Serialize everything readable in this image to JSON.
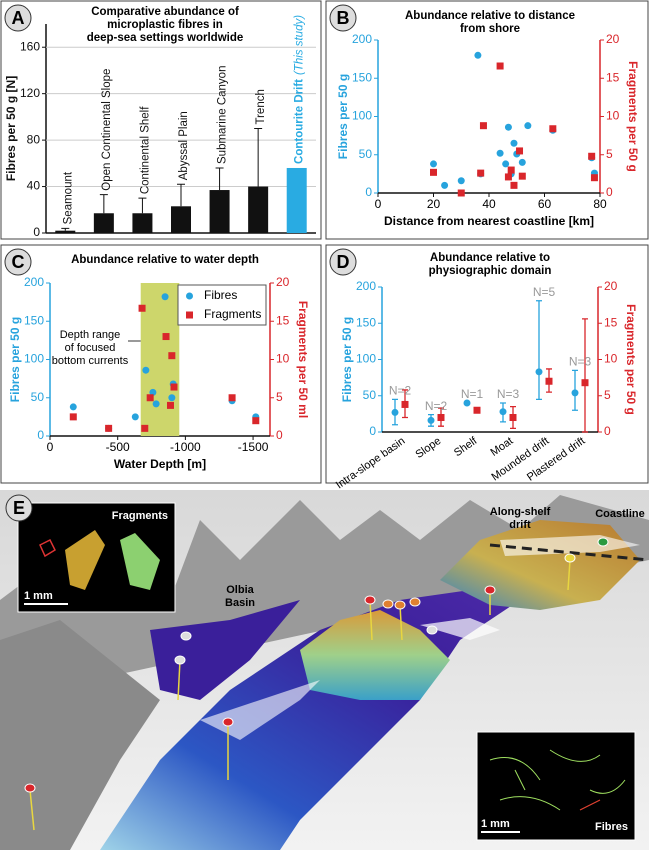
{
  "chart_data": [
    {
      "label": "A",
      "type": "bar",
      "title": [
        "Comparative abundance of",
        "microplastic fibres in",
        "deep-sea settings worldwide"
      ],
      "ylabel": "Fibres per 50 g [N]",
      "categories": [
        "Seamount",
        "Open Continental Slope",
        "Continental Shelf",
        "Abyssal Plain",
        "Submarine Canyon",
        "Trench",
        "Contourite Drift"
      ],
      "notes": [
        null,
        null,
        null,
        null,
        null,
        null,
        "(This study)"
      ],
      "values": [
        2,
        17,
        17,
        23,
        37,
        40,
        56
      ],
      "errors": [
        2,
        16,
        13,
        19,
        19,
        50,
        null
      ],
      "colors": [
        "#111111",
        "#111111",
        "#111111",
        "#111111",
        "#111111",
        "#111111",
        "#29abe2"
      ],
      "ylim": [
        0,
        180
      ],
      "yticks": [
        0,
        40,
        80,
        120,
        160
      ],
      "grid": true
    },
    {
      "label": "B",
      "type": "scatter",
      "title": [
        "Abundance relative to distance",
        "from shore"
      ],
      "xlabel": "Distance from nearest coastline [km]",
      "ylabel": "Fibres per 50 g",
      "y2label": "Fragments per 50 g",
      "ycolor": "#27a3dd",
      "y2color": "#d9262b",
      "xlim": [
        0,
        80
      ],
      "xticks": [
        0,
        20,
        40,
        60,
        80
      ],
      "ylim": [
        0,
        200
      ],
      "yticks": [
        0,
        50,
        100,
        150,
        200
      ],
      "y2lim": [
        0,
        20
      ],
      "y2ticks": [
        0,
        5,
        10,
        15,
        20
      ],
      "series": [
        {
          "color": "#27a3dd",
          "marker": "circle",
          "x": [
            20,
            24,
            30,
            36,
            37,
            44,
            46,
            47,
            48,
            49,
            50,
            52,
            54,
            63,
            77,
            78
          ],
          "values": [
            38,
            10,
            16,
            180,
            25,
            52,
            38,
            86,
            25,
            65,
            51,
            40,
            88,
            82,
            46,
            26
          ]
        },
        {
          "color": "#d9262b",
          "marker": "square",
          "axis": "y2",
          "x": [
            20,
            30,
            38,
            37,
            44,
            47,
            48,
            49,
            51,
            52,
            63,
            77,
            78
          ],
          "values": [
            2.7,
            0,
            8.8,
            2.6,
            16.6,
            2.1,
            3,
            1,
            5.5,
            2.2,
            8.4,
            4.8,
            2
          ]
        }
      ]
    },
    {
      "label": "C",
      "type": "scatter",
      "title": [
        "Abundance relative to water depth"
      ],
      "xlabel": "Water Depth [m]",
      "ylabel": "Fibres per 50 g",
      "y2label": "Fragments per 50 ml",
      "ycolor": "#27a3dd",
      "y2color": "#d9262b",
      "xlim": [
        0,
        -1625
      ],
      "xticks": [
        0,
        -500,
        -1000,
        -1500
      ],
      "ylim": [
        0,
        200
      ],
      "yticks": [
        0,
        50,
        100,
        150,
        200
      ],
      "y2lim": [
        0,
        20
      ],
      "y2ticks": [
        0,
        5,
        10,
        15,
        20
      ],
      "band": [
        -670,
        -955
      ],
      "band_color": "#cdd66b",
      "annotation": [
        "Depth range",
        "of focused",
        "bottom currents"
      ],
      "legend": "upper right",
      "series": [
        {
          "name": "Fibres",
          "color": "#27a3dd",
          "marker": "circle",
          "x": [
            -172,
            -433,
            -630,
            -708,
            -760,
            -784,
            -850,
            -910,
            -900,
            -1345,
            -1520
          ],
          "values": [
            38,
            10,
            25,
            86,
            57,
            42,
            182,
            68,
            50,
            46,
            25
          ]
        },
        {
          "name": "Fragments",
          "color": "#d9262b",
          "marker": "square",
          "axis": "y2",
          "x": [
            -172,
            -433,
            -680,
            -700,
            -740,
            -857,
            -916,
            -890,
            -900,
            -1345,
            -1520
          ],
          "values": [
            2.5,
            1,
            16.7,
            1,
            5,
            13,
            6.4,
            4,
            10.5,
            5,
            2
          ]
        }
      ]
    },
    {
      "label": "D",
      "type": "dot_error",
      "title": [
        "Abundance relative to",
        "physiographic domain"
      ],
      "ylabel": "Fibres per 50 g",
      "y2label": "Fragments per 50 g",
      "ycolor": "#27a3dd",
      "y2color": "#d9262b",
      "categories": [
        "Intra-slope basin",
        "Slope",
        "Shelf",
        "Moat",
        "Mounded drift",
        "Plastered drift"
      ],
      "n_labels": [
        "N=2",
        "N=2",
        "N=1",
        "N=3",
        "N=5",
        "N=3"
      ],
      "ylim": [
        0,
        200
      ],
      "yticks": [
        0,
        50,
        100,
        150,
        200
      ],
      "y2lim": [
        0,
        20
      ],
      "y2ticks": [
        0,
        5,
        10,
        15,
        20
      ],
      "series": [
        {
          "color": "#27a3dd",
          "marker": "circle",
          "values": [
            27,
            16,
            40,
            28,
            83,
            54
          ],
          "lower": [
            10,
            8,
            null,
            14,
            45,
            30
          ],
          "upper": [
            45,
            24,
            null,
            40,
            181,
            85
          ]
        },
        {
          "color": "#d9262b",
          "marker": "square",
          "axis": "y2",
          "values": [
            3.8,
            2,
            3,
            2,
            7,
            6.8
          ],
          "lower": [
            2,
            0.8,
            null,
            0.5,
            5.5,
            0
          ],
          "upper": [
            5.8,
            3.3,
            null,
            3.5,
            8.7,
            15.6
          ]
        }
      ]
    }
  ],
  "panel_e": {
    "label": "E",
    "fragments_inset": {
      "title": "Fragments",
      "scale": "1 mm"
    },
    "fibres_inset": {
      "title": "Fibres",
      "scale": "1 mm"
    },
    "labels": [
      [
        "Olbia",
        "Basin"
      ],
      [
        "Along-shelf",
        "drift"
      ],
      [
        "Coastline"
      ]
    ]
  }
}
